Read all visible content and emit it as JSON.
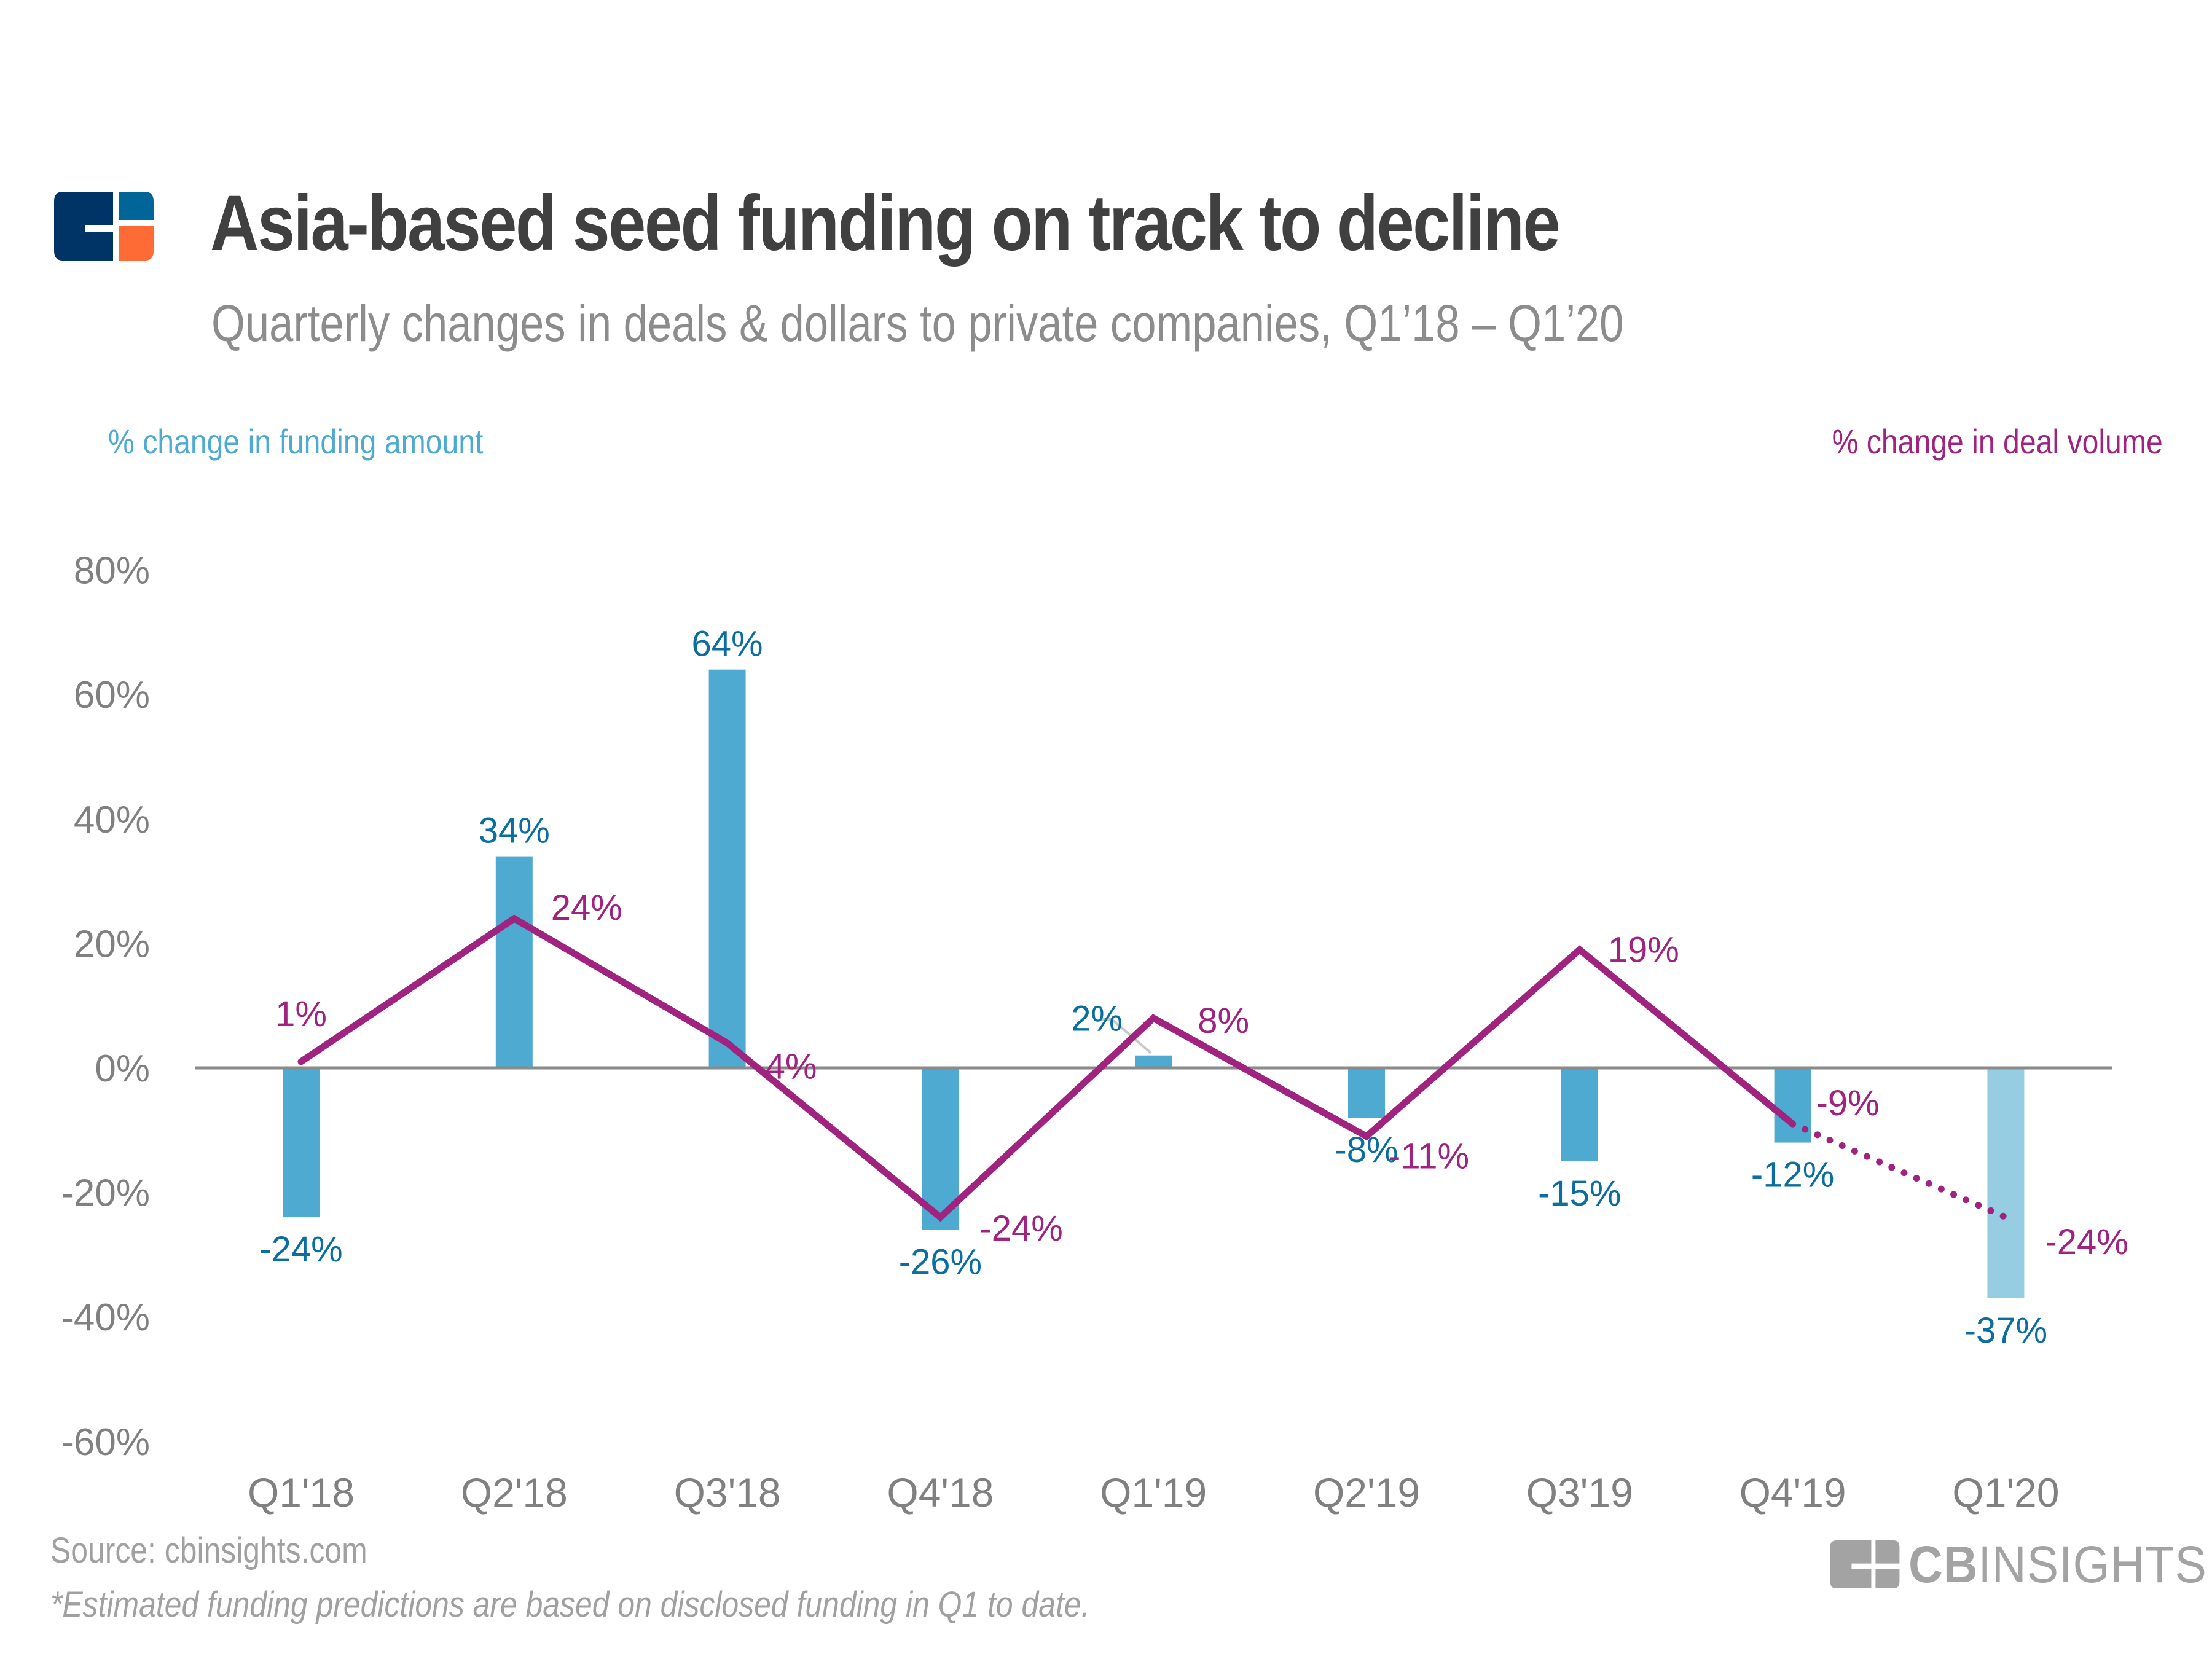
{
  "header": {
    "logo": "cb-insights-logo-icon",
    "title": "Asia-based seed funding on track to decline",
    "subtitle": "Quarterly changes in deals & dollars to private companies, Q1’18 – Q1’20"
  },
  "legend": {
    "left": "% change in funding amount",
    "right": "% change in deal volume"
  },
  "colors": {
    "bar": "#4eaad0",
    "bar_estimated": "#96cde3",
    "bar_label": "#0a6ea0",
    "line": "#a0237f",
    "axis": "#808080",
    "title": "#404040",
    "subtitle": "#8c8c8c"
  },
  "chart_data": {
    "type": "bar",
    "title": "Asia-based seed funding on track to decline",
    "subtitle": "Quarterly changes in deals & dollars to private companies, Q1’18 – Q1’20",
    "xlabel": "",
    "ylabel": "",
    "ylim": [
      -60,
      80
    ],
    "yticks": [
      80,
      60,
      40,
      20,
      0,
      -20,
      -40,
      -60
    ],
    "ytick_labels": [
      "80%",
      "60%",
      "40%",
      "20%",
      "0%",
      "-20%",
      "-40%",
      "-60%"
    ],
    "grid": false,
    "categories": [
      "Q1'18",
      "Q2'18",
      "Q3'18",
      "Q4'18",
      "Q1'19",
      "Q2'19",
      "Q3'19",
      "Q4'19",
      "Q1'20"
    ],
    "series": [
      {
        "name": "% change in funding amount",
        "kind": "bar",
        "values": [
          -24,
          34,
          64,
          -26,
          2,
          -8,
          -15,
          -12,
          -37
        ],
        "labels": [
          "-24%",
          "34%",
          "64%",
          "-26%",
          "2%",
          "-8%",
          "-15%",
          "-12%",
          "-37%"
        ],
        "estimated": [
          false,
          false,
          false,
          false,
          false,
          false,
          false,
          false,
          true
        ]
      },
      {
        "name": "% change in deal volume",
        "kind": "line",
        "values": [
          1,
          24,
          4,
          -24,
          8,
          -11,
          19,
          -9,
          -24
        ],
        "labels": [
          "1%",
          "24%",
          "4%",
          "-24%",
          "8%",
          "-11%",
          "19%",
          "-9%",
          "-24%"
        ],
        "estimated": [
          false,
          false,
          false,
          false,
          false,
          false,
          false,
          false,
          true
        ]
      }
    ],
    "legend": [
      "% change in funding amount (top-left)",
      "% change in deal volume (top-right)"
    ]
  },
  "footer": {
    "source": "Source: cbinsights.com",
    "footnote": "*Estimated funding predictions are based on disclosed funding in Q1 to date.",
    "brand_bold": "CB",
    "brand_light": "INSIGHTS"
  }
}
